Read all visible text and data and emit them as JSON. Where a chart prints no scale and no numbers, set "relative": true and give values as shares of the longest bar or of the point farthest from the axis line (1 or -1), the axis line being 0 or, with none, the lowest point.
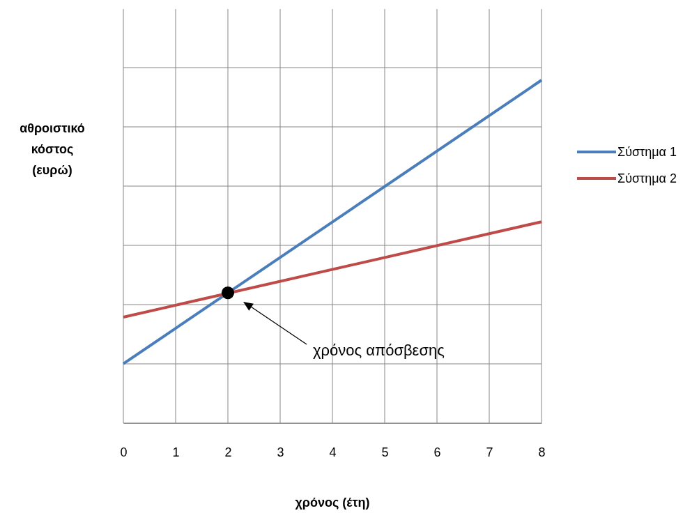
{
  "chart_data": {
    "type": "line",
    "relative": true,
    "xlabel": "χρόνος (έτη)",
    "ylabel": "αθροιστικό κόστος (ευρώ)",
    "x": [
      0,
      8
    ],
    "xlim": [
      0,
      8
    ],
    "xticks": [
      0,
      1,
      2,
      3,
      4,
      5,
      6,
      7,
      8
    ],
    "grid": true,
    "legend": "right",
    "line_style": "solid",
    "marker": "none",
    "series": [
      {
        "name": "Σύστημα 1",
        "color": "#4a7ebb",
        "values": [
          0.173,
          1
        ]
      },
      {
        "name": "Σύστημα 2",
        "color": "#be4b48",
        "values": [
          0.309,
          0.587
        ]
      },
      {
        "type": "scatter",
        "color": "#000000",
        "marker": "circle",
        "x": [
          2
        ],
        "values": [
          0.38
        ]
      }
    ],
    "annotations": [
      "χρόνος απόσβεσης"
    ]
  }
}
